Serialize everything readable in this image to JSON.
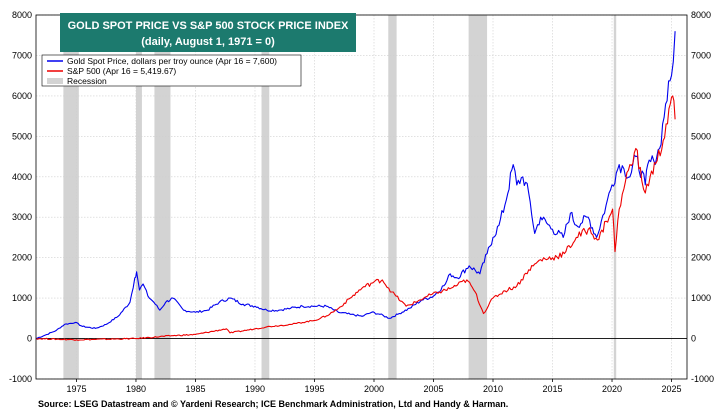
{
  "chart_data": {
    "type": "line",
    "title": "GOLD SPOT PRICE VS S&P 500 STOCK PRICE INDEX",
    "subtitle": "(daily, August 1, 1971 = 0)",
    "xlim": [
      1971.6,
      2026.3
    ],
    "ylim": [
      -1000,
      8000
    ],
    "y_ticks": [
      -1000,
      0,
      1000,
      2000,
      3000,
      4000,
      5000,
      6000,
      7000,
      8000
    ],
    "x_ticks": [
      1975,
      1980,
      1985,
      1990,
      1995,
      2000,
      2005,
      2010,
      2015,
      2020,
      2025
    ],
    "grid": true,
    "legend_position": "top-left",
    "series": [
      {
        "name": "Gold Spot Price, dollars per troy ounce (Apr 16 = 7,600)",
        "color": "#0000ee",
        "x": [
          1971.6,
          1972.5,
          1973.3,
          1974.0,
          1974.9,
          1975.5,
          1976.6,
          1977.5,
          1978.5,
          1979.5,
          1979.9,
          1980.05,
          1980.3,
          1980.6,
          1981.0,
          1981.5,
          1982.0,
          1982.5,
          1983.1,
          1984.0,
          1985.0,
          1986.0,
          1987.0,
          1987.9,
          1989.0,
          1990.0,
          1991.0,
          1992.0,
          1993.0,
          1994.0,
          1995.0,
          1996.0,
          1997.0,
          1998.0,
          1999.0,
          1999.8,
          2000.5,
          2001.3,
          2002.0,
          2003.0,
          2004.0,
          2005.0,
          2006.0,
          2006.4,
          2007.0,
          2008.0,
          2008.9,
          2009.5,
          2010.0,
          2010.5,
          2011.0,
          2011.7,
          2012.0,
          2012.5,
          2013.0,
          2013.5,
          2014.0,
          2015.0,
          2015.9,
          2016.5,
          2017.0,
          2018.0,
          2018.7,
          2019.5,
          2020.0,
          2020.6,
          2021.0,
          2021.5,
          2022.0,
          2022.8,
          2023.0,
          2023.5,
          2024.0,
          2024.5,
          2025.0,
          2025.3
        ],
        "y": [
          0,
          100,
          200,
          350,
          400,
          300,
          250,
          350,
          550,
          900,
          1500,
          1650,
          1200,
          1350,
          1050,
          900,
          700,
          900,
          1000,
          700,
          650,
          700,
          900,
          1000,
          850,
          800,
          700,
          700,
          750,
          800,
          800,
          800,
          650,
          600,
          550,
          650,
          600,
          500,
          600,
          750,
          950,
          1050,
          1350,
          1600,
          1500,
          1800,
          1600,
          2100,
          2500,
          2800,
          3300,
          4300,
          3800,
          4000,
          3600,
          2600,
          3000,
          2700,
          2500,
          3100,
          2800,
          3000,
          2500,
          3300,
          3800,
          4300,
          4200,
          4000,
          4500,
          3800,
          4300,
          4400,
          4700,
          5800,
          6500,
          7600
        ]
      },
      {
        "name": "S&P 500 (Apr 16 = 5,419.67)",
        "color": "#ee0000",
        "x": [
          1971.6,
          1975.0,
          1980.0,
          1983.0,
          1985.0,
          1987.6,
          1987.9,
          1990.0,
          1991.0,
          1993.0,
          1995.0,
          1996.0,
          1997.0,
          1998.0,
          1999.0,
          2000.0,
          2000.7,
          2001.5,
          2002.7,
          2003.5,
          2004.5,
          2005.5,
          2006.5,
          2007.8,
          2008.5,
          2009.2,
          2010.0,
          2011.0,
          2012.0,
          2013.0,
          2014.0,
          2015.0,
          2016.0,
          2017.0,
          2018.0,
          2018.9,
          2019.5,
          2020.05,
          2020.25,
          2020.6,
          2021.0,
          2021.5,
          2022.0,
          2022.5,
          2022.8,
          2023.2,
          2023.8,
          2024.3,
          2024.9,
          2025.1,
          2025.3
        ],
        "y": [
          0,
          -30,
          0,
          70,
          100,
          240,
          140,
          240,
          290,
          350,
          450,
          560,
          740,
          1000,
          1250,
          1400,
          1450,
          1150,
          800,
          900,
          1050,
          1150,
          1250,
          1450,
          1150,
          620,
          1000,
          1180,
          1300,
          1700,
          1950,
          2000,
          2100,
          2500,
          2700,
          2450,
          2900,
          3200,
          2150,
          3200,
          3700,
          4300,
          4700,
          3900,
          3600,
          4000,
          4400,
          4900,
          5800,
          6000,
          5420
        ]
      }
    ],
    "recessions": [
      [
        1973.9,
        1975.2
      ],
      [
        1980.0,
        1980.5
      ],
      [
        1981.55,
        1982.9
      ],
      [
        1990.55,
        1991.2
      ],
      [
        2001.2,
        2001.9
      ],
      [
        2007.95,
        2009.5
      ],
      [
        2020.15,
        2020.35
      ]
    ],
    "legend": {
      "recession_label": "Recession",
      "recession_color": "#d3d3d3"
    }
  },
  "source_text": "Source: LSEG Datastream and © Yardeni Research; ICE Benchmark Administration, Ltd and Handy & Harman."
}
